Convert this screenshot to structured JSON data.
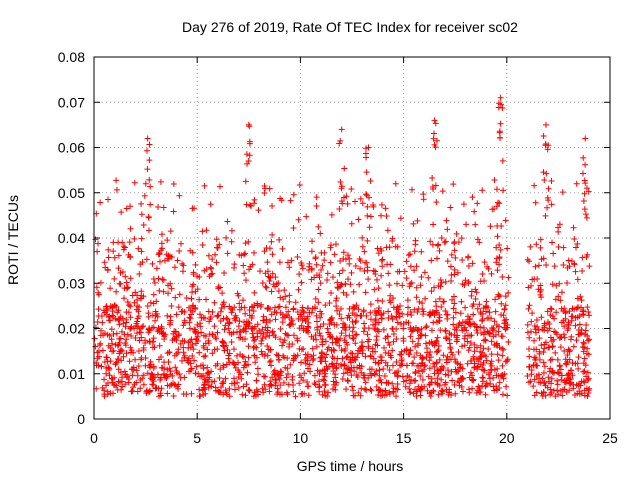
{
  "chart_data": {
    "type": "scatter",
    "title": "Day 276 of 2019, Rate Of TEC Index for receiver sc02",
    "xlabel": "GPS time / hours",
    "ylabel": "ROTI / TECUs",
    "xlim": [
      0,
      25
    ],
    "ylim": [
      0,
      0.08
    ],
    "xticks": [
      0,
      5,
      10,
      15,
      20,
      25
    ],
    "xtick_labels": [
      "0",
      "5",
      "10",
      "15",
      "20",
      "25"
    ],
    "yticks": [
      0,
      0.01,
      0.02,
      0.03,
      0.04,
      0.05,
      0.06,
      0.07,
      0.08
    ],
    "ytick_labels": [
      "0",
      "0.01",
      "0.02",
      "0.03",
      "0.04",
      "0.05",
      "0.06",
      "0.07",
      "0.08"
    ],
    "grid": true,
    "marker": "plus",
    "series": [
      {
        "name": "ROTI",
        "color": "#ff0000",
        "data_gap_hours": [
          20.1,
          21.0
        ],
        "peaks": [
          {
            "x": 2.6,
            "y": 0.062
          },
          {
            "x": 7.5,
            "y": 0.065
          },
          {
            "x": 12.0,
            "y": 0.064
          },
          {
            "x": 13.3,
            "y": 0.06
          },
          {
            "x": 16.5,
            "y": 0.066
          },
          {
            "x": 19.7,
            "y": 0.071
          },
          {
            "x": 21.9,
            "y": 0.065
          },
          {
            "x": 23.8,
            "y": 0.062
          }
        ],
        "typical_range": [
          0.005,
          0.025
        ]
      }
    ]
  }
}
